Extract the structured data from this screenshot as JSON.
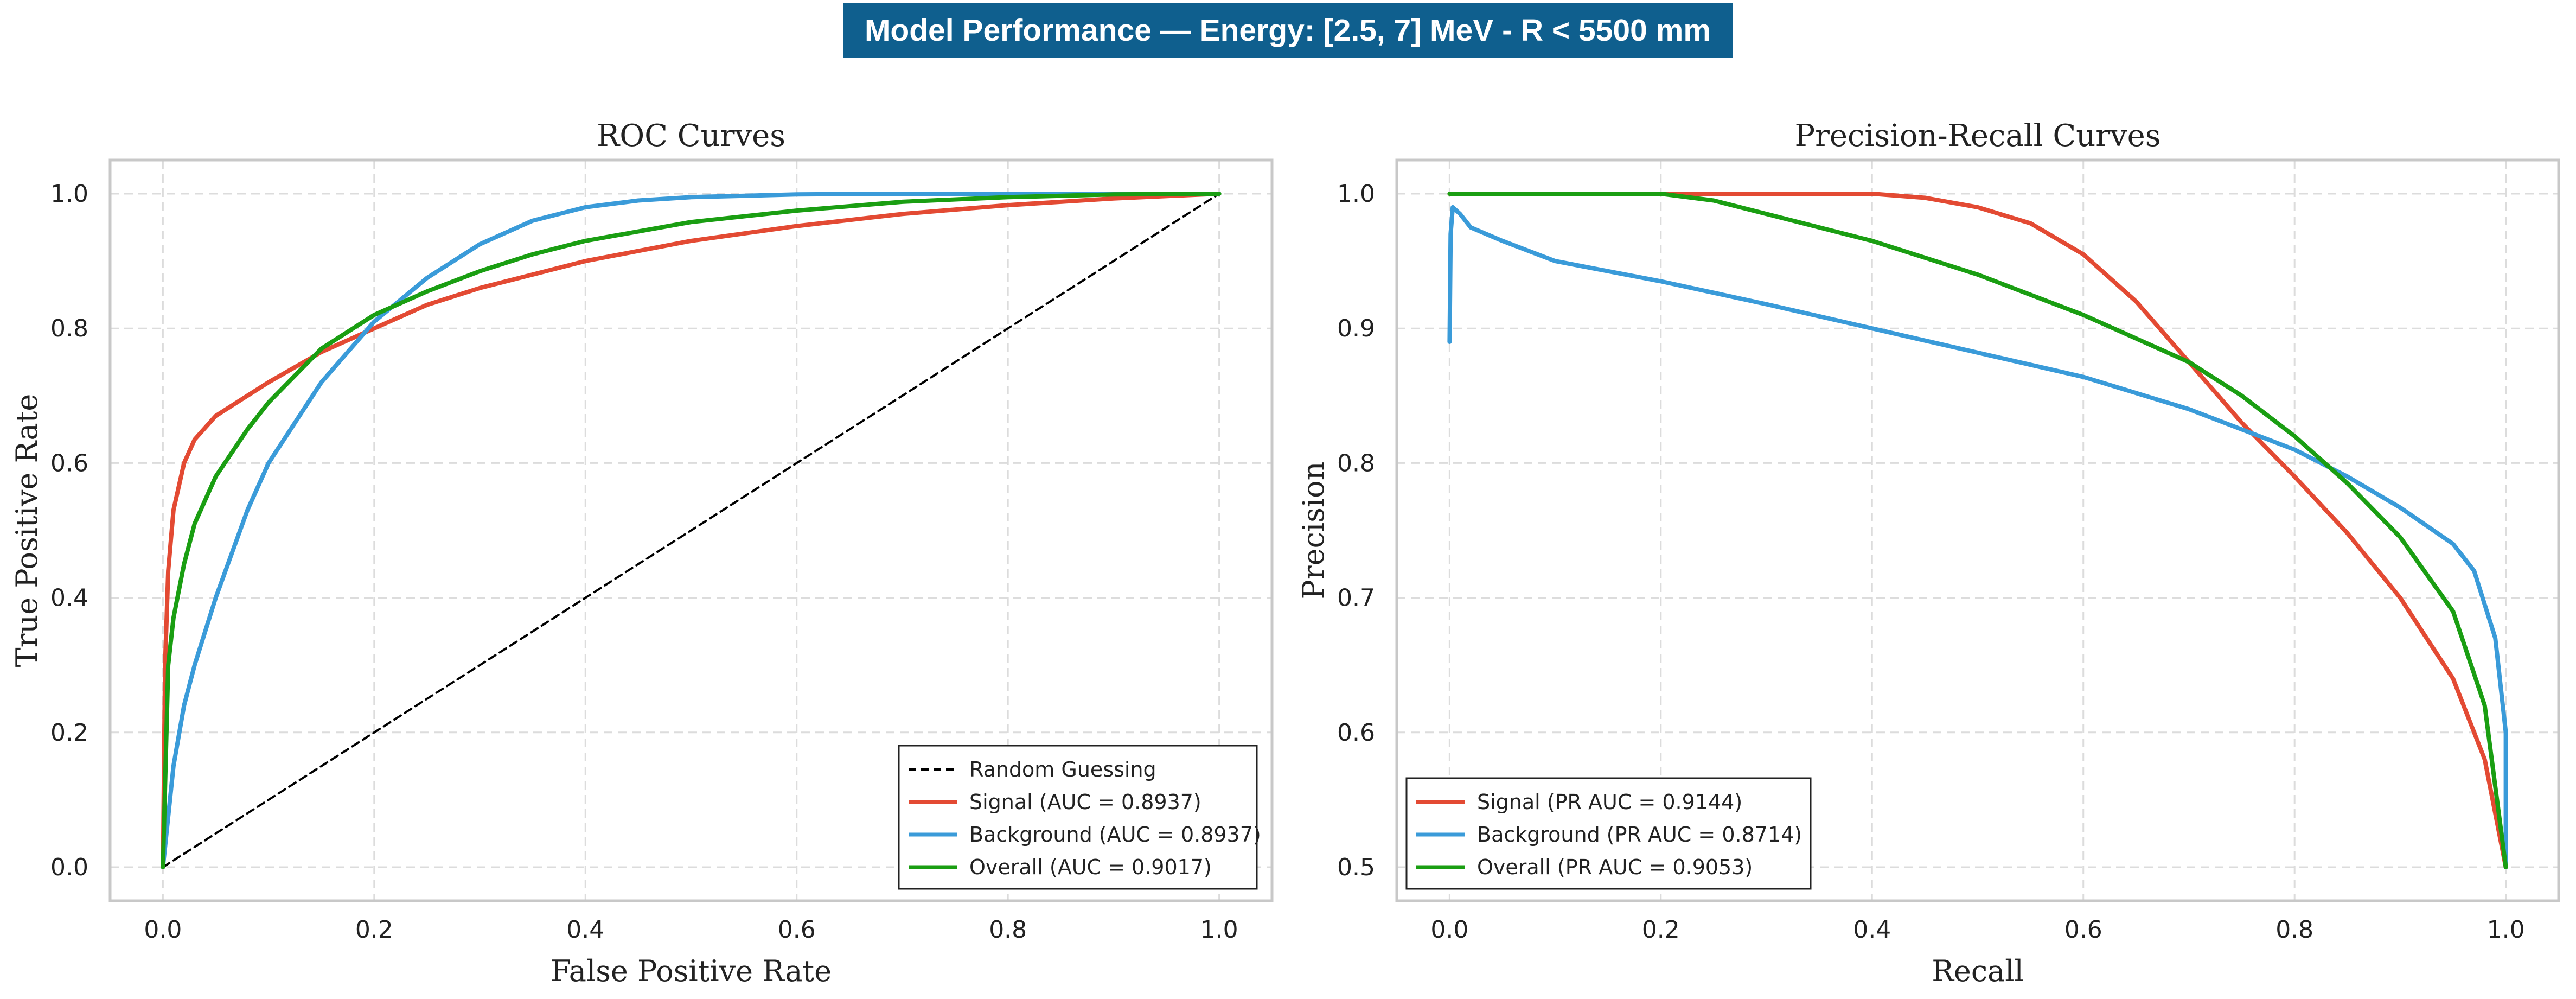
{
  "title": "Model Performance — Energy: [2.5, 7] MeV - R < 5500 mm",
  "colors": {
    "title_bg": "#0f5f8e",
    "signal": "#e34a33",
    "background": "#3a9bd9",
    "overall": "#1a9e12",
    "random": "#000000"
  },
  "chart_data": [
    {
      "type": "line",
      "title": "ROC Curves",
      "xlabel": "False Positive Rate",
      "ylabel": "True Positive Rate",
      "xlim": [
        -0.05,
        1.05
      ],
      "ylim": [
        -0.05,
        1.05
      ],
      "xticks": [
        "0.0",
        "0.2",
        "0.4",
        "0.6",
        "0.8",
        "1.0"
      ],
      "yticks": [
        "0.0",
        "0.2",
        "0.4",
        "0.6",
        "0.8",
        "1.0"
      ],
      "grid": true,
      "legend_position": "lower-right",
      "series": [
        {
          "name": "Random Guessing",
          "style": "dashed",
          "x": [
            0,
            1
          ],
          "y": [
            0,
            1
          ]
        },
        {
          "name": "Signal (AUC = 0.8937)",
          "x": [
            0,
            0.002,
            0.005,
            0.01,
            0.02,
            0.03,
            0.05,
            0.08,
            0.1,
            0.15,
            0.2,
            0.25,
            0.3,
            0.35,
            0.4,
            0.5,
            0.6,
            0.7,
            0.8,
            0.9,
            1.0
          ],
          "y": [
            0,
            0.3,
            0.44,
            0.53,
            0.6,
            0.635,
            0.67,
            0.7,
            0.72,
            0.765,
            0.8,
            0.835,
            0.86,
            0.88,
            0.9,
            0.93,
            0.952,
            0.97,
            0.983,
            0.993,
            1.0
          ]
        },
        {
          "name": "Background (AUC = 0.8937)",
          "x": [
            0,
            0.01,
            0.02,
            0.03,
            0.05,
            0.08,
            0.1,
            0.15,
            0.2,
            0.25,
            0.3,
            0.35,
            0.4,
            0.45,
            0.5,
            0.6,
            0.7,
            0.8,
            0.9,
            1.0
          ],
          "y": [
            0,
            0.15,
            0.24,
            0.3,
            0.4,
            0.53,
            0.6,
            0.72,
            0.81,
            0.875,
            0.925,
            0.96,
            0.98,
            0.99,
            0.995,
            0.999,
            1.0,
            1.0,
            1.0,
            1.0
          ]
        },
        {
          "name": "Overall (AUC = 0.9017)",
          "x": [
            0,
            0.005,
            0.01,
            0.02,
            0.03,
            0.05,
            0.08,
            0.1,
            0.15,
            0.2,
            0.25,
            0.3,
            0.35,
            0.4,
            0.5,
            0.6,
            0.7,
            0.8,
            0.9,
            1.0
          ],
          "y": [
            0,
            0.3,
            0.37,
            0.45,
            0.51,
            0.58,
            0.65,
            0.69,
            0.77,
            0.82,
            0.855,
            0.885,
            0.91,
            0.93,
            0.958,
            0.975,
            0.988,
            0.995,
            0.999,
            1.0
          ]
        }
      ]
    },
    {
      "type": "line",
      "title": "Precision-Recall Curves",
      "xlabel": "Recall",
      "ylabel": "Precision",
      "xlim": [
        -0.05,
        1.05
      ],
      "ylim": [
        0.475,
        1.025
      ],
      "xticks": [
        "0.0",
        "0.2",
        "0.4",
        "0.6",
        "0.8",
        "1.0"
      ],
      "yticks": [
        "0.5",
        "0.6",
        "0.7",
        "0.8",
        "0.9",
        "1.0"
      ],
      "grid": true,
      "legend_position": "lower-left",
      "series": [
        {
          "name": "Signal (PR AUC = 0.9144)",
          "x": [
            0,
            0.2,
            0.3,
            0.4,
            0.45,
            0.5,
            0.55,
            0.6,
            0.65,
            0.7,
            0.75,
            0.8,
            0.85,
            0.9,
            0.95,
            0.98,
            1.0
          ],
          "y": [
            1.0,
            1.0,
            1.0,
            1.0,
            0.997,
            0.99,
            0.978,
            0.955,
            0.92,
            0.875,
            0.83,
            0.79,
            0.748,
            0.7,
            0.64,
            0.58,
            0.5
          ]
        },
        {
          "name": "Background (PR AUC = 0.8714)",
          "x": [
            0,
            0.001,
            0.003,
            0.01,
            0.02,
            0.05,
            0.1,
            0.2,
            0.3,
            0.4,
            0.5,
            0.6,
            0.7,
            0.8,
            0.85,
            0.9,
            0.95,
            0.97,
            0.99,
            1.0,
            1.0
          ],
          "y": [
            0.89,
            0.97,
            0.99,
            0.985,
            0.975,
            0.965,
            0.95,
            0.935,
            0.918,
            0.9,
            0.882,
            0.864,
            0.84,
            0.81,
            0.79,
            0.767,
            0.74,
            0.72,
            0.67,
            0.6,
            0.5
          ]
        },
        {
          "name": "Overall (PR AUC = 0.9053)",
          "x": [
            0,
            0.1,
            0.2,
            0.25,
            0.3,
            0.4,
            0.5,
            0.6,
            0.7,
            0.75,
            0.8,
            0.85,
            0.9,
            0.95,
            0.98,
            1.0
          ],
          "y": [
            1.0,
            1.0,
            1.0,
            0.995,
            0.985,
            0.965,
            0.94,
            0.91,
            0.875,
            0.85,
            0.82,
            0.785,
            0.745,
            0.69,
            0.62,
            0.5
          ]
        }
      ]
    }
  ]
}
